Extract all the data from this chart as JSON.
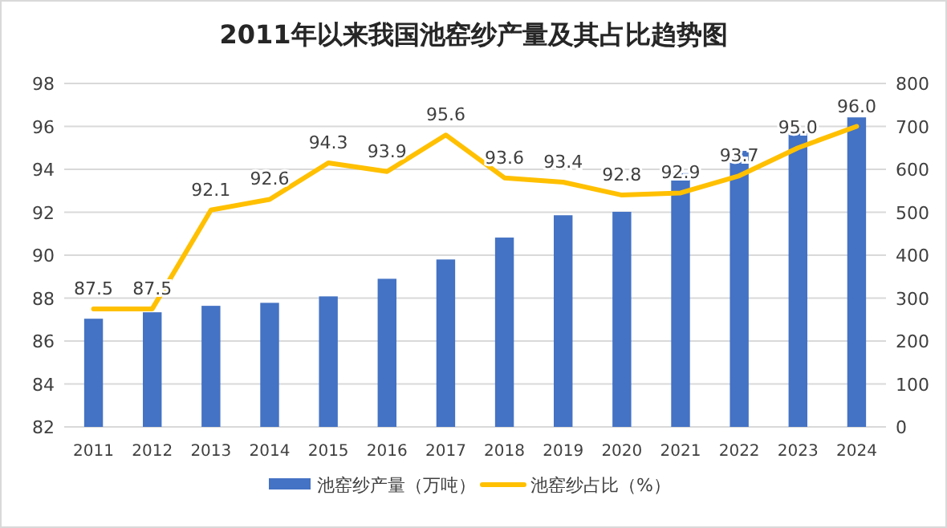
{
  "chart_data": {
    "type": "bar",
    "title": "2011年以来我国池窑纱产量及其占比趋势图",
    "categories": [
      "2011",
      "2012",
      "2013",
      "2014",
      "2015",
      "2016",
      "2017",
      "2018",
      "2019",
      "2020",
      "2021",
      "2022",
      "2023",
      "2024"
    ],
    "series": [
      {
        "name": "池窑纱产量（万吨）",
        "axis": "y2",
        "color": "#4472c4",
        "values": [
          252,
          267,
          282,
          289,
          304,
          345,
          390,
          441,
          493,
          501,
          591,
          643,
          692,
          721
        ]
      },
      {
        "name": "池窑纱占比（%）",
        "type": "line",
        "axis": "y",
        "color": "#ffc000",
        "values": [
          87.5,
          87.5,
          92.1,
          92.6,
          94.3,
          93.9,
          95.6,
          93.6,
          93.4,
          92.8,
          92.9,
          93.7,
          95.0,
          96.0
        ],
        "value_labels": [
          "87.5",
          "87.5",
          "92.1",
          "92.6",
          "94.3",
          "93.9",
          "95.6",
          "93.6",
          "93.4",
          "92.8",
          "92.9",
          "93.7",
          "95.0",
          "96.0"
        ]
      }
    ],
    "ylim": [
      82,
      98
    ],
    "yticks": [
      82,
      84,
      86,
      88,
      90,
      92,
      94,
      96,
      98
    ],
    "y2lim": [
      0,
      800
    ],
    "y2ticks": [
      0,
      100,
      200,
      300,
      400,
      500,
      600,
      700,
      800
    ],
    "grid": "y",
    "legend": "bottom"
  }
}
